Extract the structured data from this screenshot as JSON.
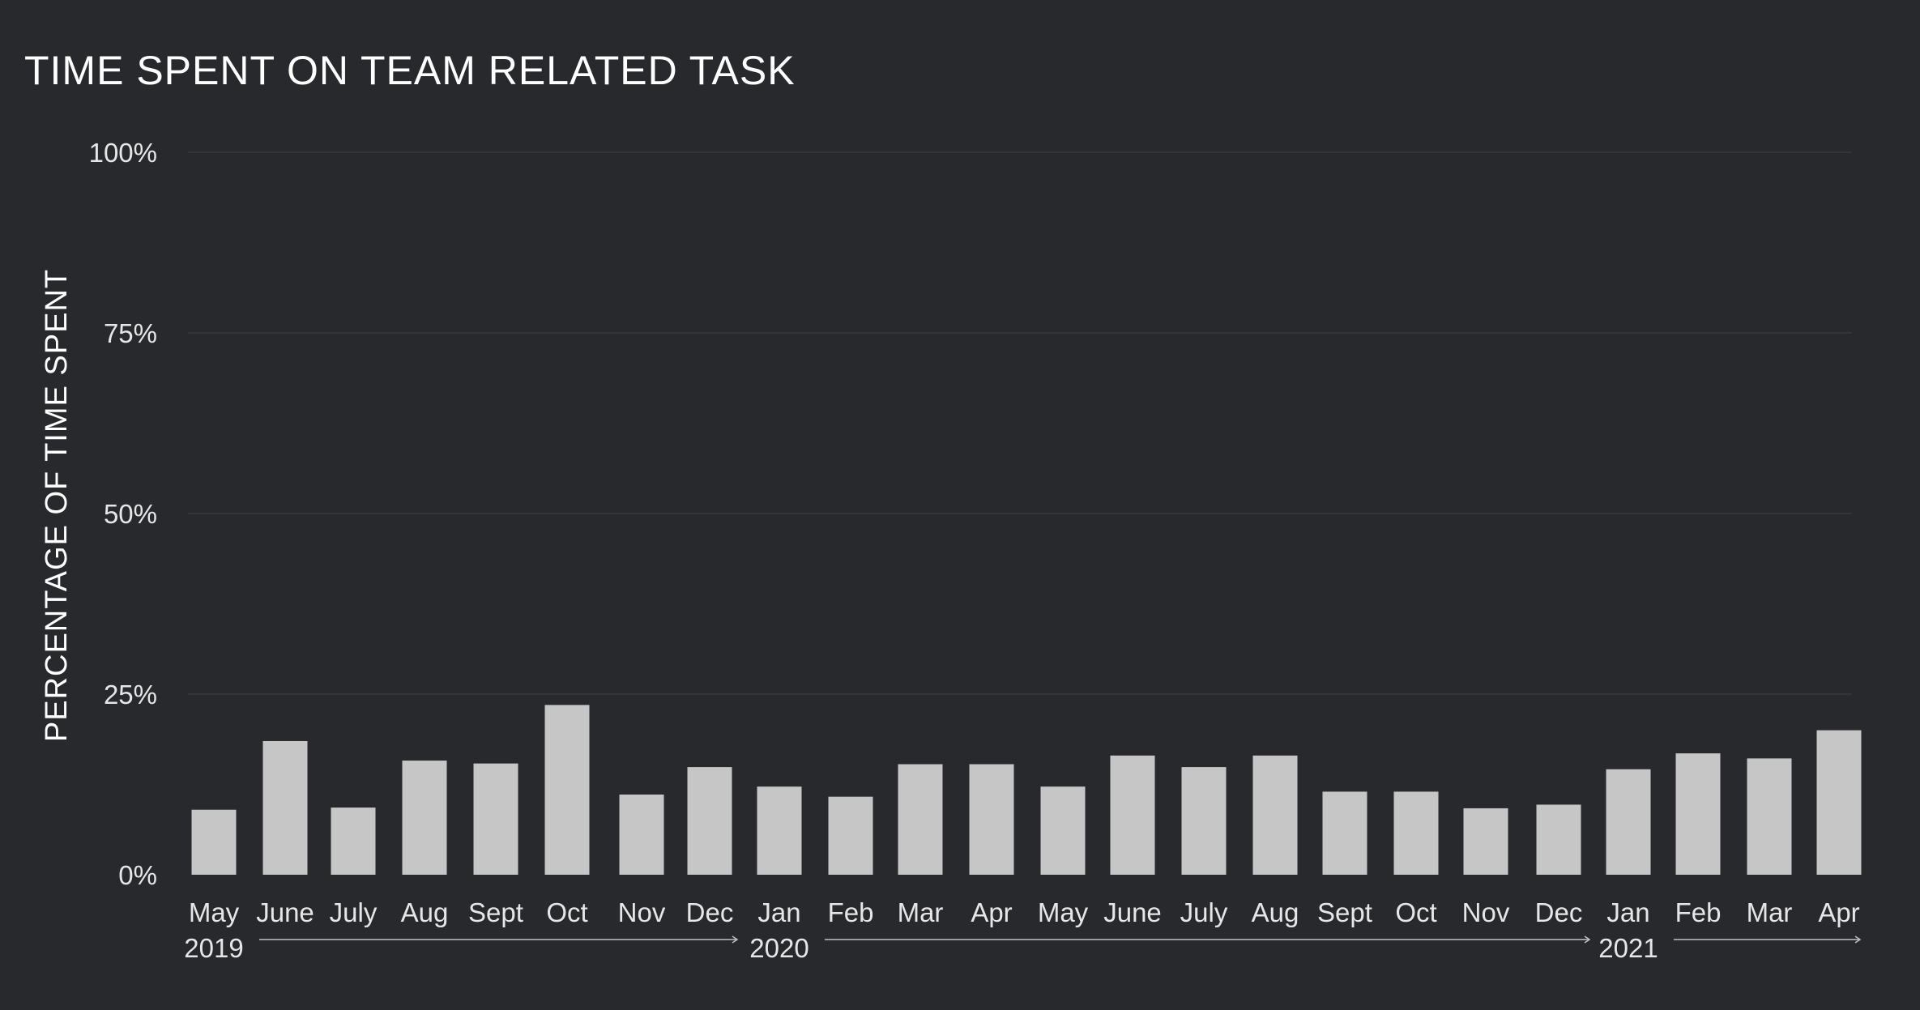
{
  "chart_data": {
    "type": "bar",
    "title": "TIME SPENT ON TEAM RELATED TASK",
    "ylabel": "PERCENTAGE OF TIME SPENT",
    "xlabel": "",
    "ylim": [
      0,
      100
    ],
    "yticks": [
      0,
      25,
      50,
      75,
      100
    ],
    "ytick_labels": [
      "0%",
      "25%",
      "50%",
      "75%",
      "100%"
    ],
    "grid": true,
    "categories": [
      "May",
      "June",
      "July",
      "Aug",
      "Sept",
      "Oct",
      "Nov",
      "Dec",
      "Jan",
      "Feb",
      "Mar",
      "Apr",
      "May",
      "June",
      "July",
      "Aug",
      "Sept",
      "Oct",
      "Nov",
      "Dec",
      "Jan",
      "Feb",
      "Mar",
      "Apr"
    ],
    "values": [
      9,
      18.5,
      9.3,
      15.8,
      15.4,
      23.5,
      11.1,
      14.9,
      12.2,
      10.8,
      15.3,
      15.3,
      12.2,
      16.5,
      14.9,
      16.5,
      11.5,
      11.5,
      9.2,
      9.7,
      14.6,
      16.8,
      16.1,
      20
    ],
    "year_labels": [
      {
        "label": "2019",
        "start_index": 0,
        "end_index": 7
      },
      {
        "label": "2020",
        "start_index": 8,
        "end_index": 19
      },
      {
        "label": "2021",
        "start_index": 20,
        "end_index": 23
      }
    ],
    "bar_color": "#c6c6c6",
    "background_color": "#28292d",
    "grid_color": "#34353a"
  }
}
